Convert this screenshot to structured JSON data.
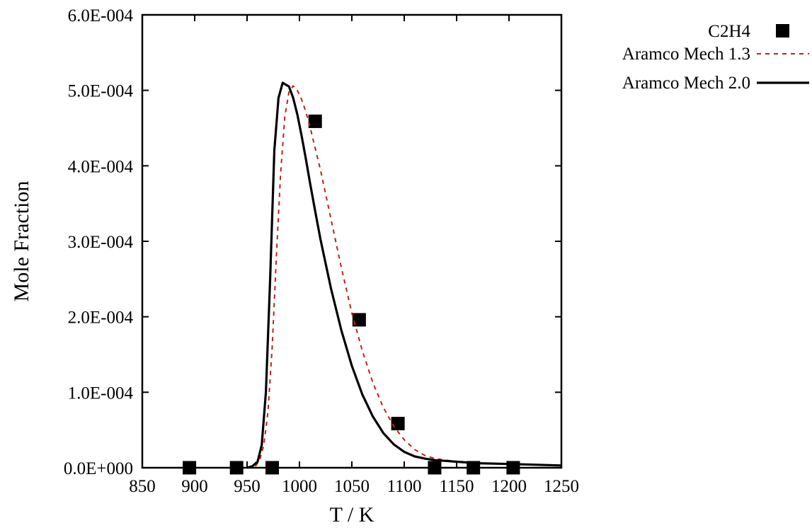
{
  "chart_data": {
    "type": "line",
    "title": "",
    "xlabel": "T / K",
    "ylabel": "Mole Fraction",
    "xlim": [
      850,
      1250
    ],
    "ylim": [
      0,
      0.0006
    ],
    "x_ticks": [
      850,
      900,
      950,
      1000,
      1050,
      1100,
      1150,
      1200,
      1250
    ],
    "x_tick_labels": [
      "850",
      "900",
      "950",
      "1000",
      "1050",
      "1100",
      "1150",
      "1200",
      "1250"
    ],
    "y_ticks": [
      0,
      0.0001,
      0.0002,
      0.0003,
      0.0004,
      0.0005,
      0.0006
    ],
    "y_tick_labels": [
      "0.0E+000",
      "1.0E-004",
      "2.0E-004",
      "3.0E-004",
      "4.0E-004",
      "5.0E-004",
      "6.0E-004"
    ],
    "grid": false,
    "legend_position": "outside-top-right",
    "series": [
      {
        "name": "C2H4",
        "kind": "scatter",
        "marker": "filled-square",
        "color": "#000000",
        "x": [
          895,
          940,
          974,
          1015,
          1057,
          1094,
          1129,
          1166,
          1204
        ],
        "y": [
          0,
          0,
          0,
          0.000459,
          0.000196,
          5.85e-05,
          0,
          0,
          0
        ]
      },
      {
        "name": "Aramco Mech 1.3",
        "kind": "line",
        "style": "dashed",
        "color": "#c0201a",
        "x": [
          950,
          958,
          962,
          966,
          970,
          974,
          978,
          982,
          986,
          990,
          994,
          998,
          1002,
          1006,
          1010,
          1020,
          1030,
          1040,
          1050,
          1060,
          1070,
          1080,
          1090,
          1100,
          1110,
          1120,
          1130,
          1150,
          1170,
          1200,
          1250
        ],
        "y": [
          0,
          2e-06,
          1e-05,
          3e-05,
          7.5e-05,
          0.00016,
          0.00028,
          0.00039,
          0.000465,
          0.000498,
          0.000506,
          0.0005,
          0.000488,
          0.000472,
          0.000452,
          0.000395,
          0.00033,
          0.000265,
          0.000205,
          0.000155,
          0.000113,
          8e-05,
          5.5e-05,
          3.7e-05,
          2.4e-05,
          1.6e-05,
          1.2e-05,
          8e-06,
          6e-06,
          5e-06,
          3e-06
        ]
      },
      {
        "name": "Aramco Mech 2.0",
        "kind": "line",
        "style": "solid",
        "color": "#000000",
        "x": [
          950,
          955,
          960,
          964,
          968,
          972,
          976,
          980,
          984,
          990,
          994,
          998,
          1002,
          1006,
          1010,
          1015,
          1020,
          1030,
          1040,
          1050,
          1060,
          1070,
          1080,
          1090,
          1100,
          1110,
          1120,
          1130,
          1150,
          1170,
          1200,
          1250
        ],
        "y": [
          0,
          2e-06,
          8e-06,
          3e-05,
          0.0001,
          0.00025,
          0.00042,
          0.00049,
          0.00051,
          0.000505,
          0.00049,
          0.000468,
          0.00044,
          0.00041,
          0.000378,
          0.00034,
          0.000303,
          0.000238,
          0.000182,
          0.000135,
          9.7e-05,
          6.8e-05,
          4.6e-05,
          3.1e-05,
          2.1e-05,
          1.5e-05,
          1.2e-05,
          1e-05,
          8e-06,
          6e-06,
          5e-06,
          3e-06
        ]
      }
    ]
  }
}
